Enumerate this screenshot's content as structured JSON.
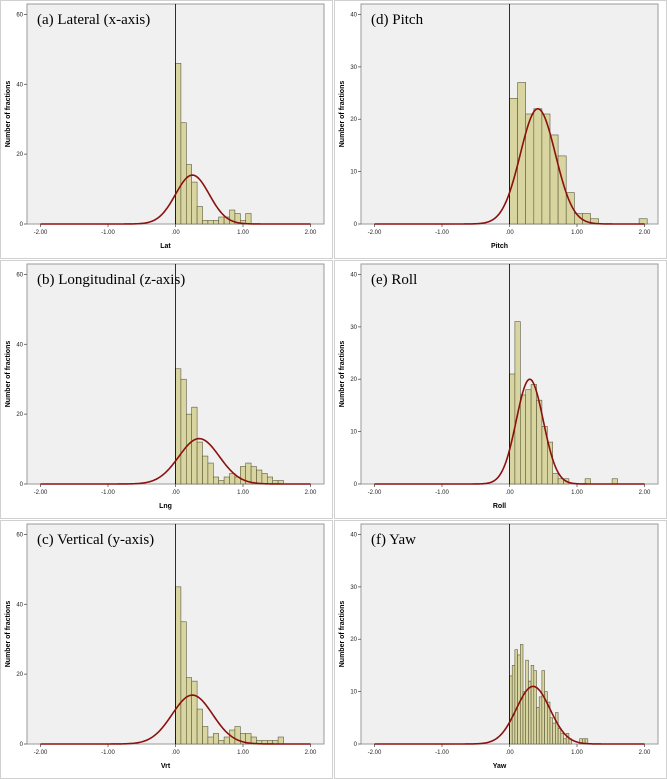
{
  "colors": {
    "plot_bg": "#f0f0f0",
    "bar_fill": "#d9d5a0",
    "bar_stroke": "#5a5a3a",
    "curve": "#8b1010",
    "axis": "#000000",
    "frame": "#9a9a9a"
  },
  "chart_data": [
    {
      "id": "a",
      "type": "bar",
      "title": "(a) Lateral (x-axis)",
      "xlabel": "Lat",
      "ylabel": "Number of fractions",
      "xlim": [
        -2.2,
        2.2
      ],
      "ylim": [
        0,
        63
      ],
      "xticks": [
        "-2.00",
        "-1.00",
        ".00",
        "1.00",
        "2.00"
      ],
      "yticks": [
        "0",
        "20",
        "40",
        "60"
      ],
      "bins": {
        "start": 0.0,
        "width": 0.08
      },
      "values": [
        46,
        29,
        17,
        12,
        5,
        1,
        1,
        1,
        2,
        2,
        4,
        3,
        1,
        3,
        0,
        0
      ],
      "normal_curve": {
        "mean": 0.25,
        "sd": 0.25,
        "peak": 14
      }
    },
    {
      "id": "b",
      "type": "bar",
      "title": "(b) Longitudinal (z-axis)",
      "xlabel": "Lng",
      "ylabel": "Number of fractions",
      "xlim": [
        -2.2,
        2.2
      ],
      "ylim": [
        0,
        63
      ],
      "xticks": [
        "-2.00",
        "-1.00",
        ".00",
        "1.00",
        "2.00"
      ],
      "yticks": [
        "0",
        "20",
        "40",
        "60"
      ],
      "bins": {
        "start": 0.0,
        "width": 0.08
      },
      "values": [
        33,
        30,
        20,
        22,
        12,
        8,
        6,
        2,
        1,
        2,
        3,
        2,
        5,
        6,
        5,
        4,
        3,
        2,
        1,
        1,
        0
      ],
      "normal_curve": {
        "mean": 0.35,
        "sd": 0.3,
        "peak": 13
      }
    },
    {
      "id": "c",
      "type": "bar",
      "title": "(c) Vertical (y-axis)",
      "xlabel": "Vrt",
      "ylabel": "Number of fractions",
      "xlim": [
        -2.2,
        2.2
      ],
      "ylim": [
        0,
        63
      ],
      "xticks": [
        "-2.00",
        "-1.00",
        ".00",
        "1.00",
        "2.00"
      ],
      "yticks": [
        "0",
        "20",
        "40",
        "60"
      ],
      "bins": {
        "start": 0.0,
        "width": 0.08
      },
      "values": [
        45,
        35,
        19,
        18,
        10,
        5,
        2,
        3,
        1,
        2,
        4,
        5,
        3,
        3,
        2,
        1,
        1,
        1,
        1,
        2,
        0
      ],
      "normal_curve": {
        "mean": 0.25,
        "sd": 0.3,
        "peak": 14
      }
    },
    {
      "id": "d",
      "type": "bar",
      "title": "(d) Pitch",
      "xlabel": "Pitch",
      "ylabel": "Number of fractions",
      "xlim": [
        -2.2,
        2.2
      ],
      "ylim": [
        0,
        42
      ],
      "xticks": [
        "-2.00",
        "-1.00",
        ".00",
        "1.00",
        "2.00"
      ],
      "yticks": [
        "0",
        "10",
        "20",
        "30",
        "40"
      ],
      "bins": {
        "start": 0.0,
        "width": 0.12
      },
      "values": [
        24,
        27,
        21,
        22,
        21,
        17,
        13,
        6,
        2,
        2,
        1,
        0,
        0,
        0,
        0,
        0,
        1
      ],
      "normal_curve": {
        "mean": 0.42,
        "sd": 0.26,
        "peak": 22
      }
    },
    {
      "id": "e",
      "type": "bar",
      "title": "(e) Roll",
      "xlabel": "Roll",
      "ylabel": "Number of fractions",
      "xlim": [
        -2.2,
        2.2
      ],
      "ylim": [
        0,
        42
      ],
      "xticks": [
        "-2.00",
        "-1.00",
        ".00",
        "1.00",
        "2.00"
      ],
      "yticks": [
        "0",
        "10",
        "20",
        "30",
        "40"
      ],
      "bins": {
        "start": 0.0,
        "width": 0.08
      },
      "values": [
        21,
        31,
        17,
        18,
        19,
        16,
        11,
        8,
        2,
        1,
        1,
        0,
        0,
        0,
        1,
        0,
        0,
        0,
        0,
        1
      ],
      "normal_curve": {
        "mean": 0.3,
        "sd": 0.2,
        "peak": 20
      }
    },
    {
      "id": "f",
      "type": "bar",
      "title": "(f) Yaw",
      "xlabel": "Yaw",
      "ylabel": "Number of fractions",
      "xlim": [
        -2.2,
        2.2
      ],
      "ylim": [
        0,
        42
      ],
      "xticks": [
        "-2.00",
        "-1.00",
        ".00",
        "1.00",
        "2.00"
      ],
      "yticks": [
        "0",
        "10",
        "20",
        "30",
        "40"
      ],
      "bins": {
        "start": 0.0,
        "width": 0.04
      },
      "values": [
        13,
        15,
        18,
        17,
        19,
        10,
        16,
        12,
        15,
        14,
        7,
        9,
        14,
        10,
        8,
        5,
        4,
        6,
        3,
        2,
        1,
        2,
        1,
        0,
        0,
        0,
        1,
        1,
        1
      ],
      "normal_curve": {
        "mean": 0.35,
        "sd": 0.25,
        "peak": 11
      }
    }
  ]
}
